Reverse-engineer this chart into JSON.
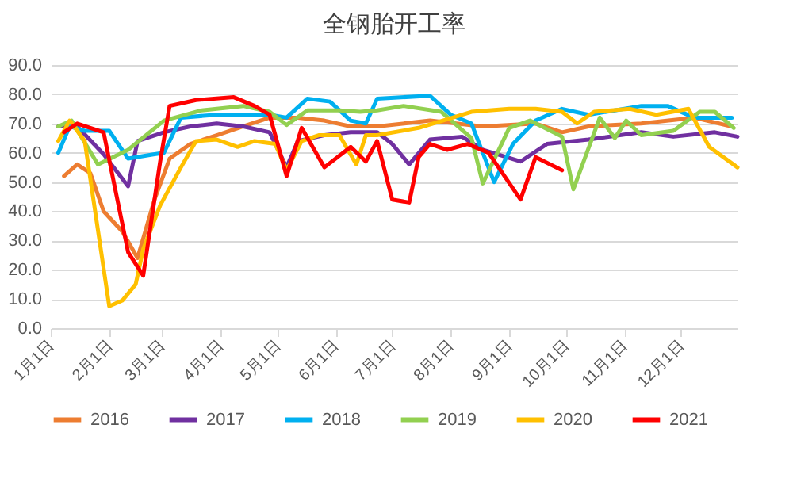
{
  "chart_data": {
    "type": "line",
    "title": "全钢胎开工率",
    "xlim": [
      "--01-01",
      "--12-31"
    ],
    "xticks": [
      {
        "value": "--01-01",
        "label": "1月1日"
      },
      {
        "value": "--02-01",
        "label": "2月1日"
      },
      {
        "value": "--03-01",
        "label": "3月1日"
      },
      {
        "value": "--04-01",
        "label": "4月1日"
      },
      {
        "value": "--05-01",
        "label": "5月1日"
      },
      {
        "value": "--06-01",
        "label": "6月1日"
      },
      {
        "value": "--07-01",
        "label": "7月1日"
      },
      {
        "value": "--08-01",
        "label": "8月1日"
      },
      {
        "value": "--09-01",
        "label": "9月1日"
      },
      {
        "value": "--10-01",
        "label": "10月1日"
      },
      {
        "value": "--11-01",
        "label": "11月1日"
      },
      {
        "value": "--12-01",
        "label": "12月1日"
      }
    ],
    "ylim": [
      0,
      90
    ],
    "yticks": [
      {
        "value": 0,
        "label": "0.0"
      },
      {
        "value": 10,
        "label": "10.0"
      },
      {
        "value": 20,
        "label": "20.0"
      },
      {
        "value": 30,
        "label": "30.0"
      },
      {
        "value": 40,
        "label": "40.0"
      },
      {
        "value": 50,
        "label": "50.0"
      },
      {
        "value": 60,
        "label": "60.0"
      },
      {
        "value": 70,
        "label": "70.0"
      },
      {
        "value": 80,
        "label": "80.0"
      },
      {
        "value": 90,
        "label": "90.0"
      }
    ],
    "grid": "y",
    "legend": "bottom",
    "marker": "none",
    "line_style": "solid",
    "series": [
      {
        "name": "2016",
        "color": "#ed7d31",
        "x": [
          "--01-08",
          "--01-15",
          "--01-22",
          "--01-29",
          "--02-08",
          "--02-16",
          "--02-25",
          "--03-05",
          "--03-16",
          "--03-30",
          "--04-13",
          "--04-27",
          "--05-12",
          "--05-26",
          "--06-09",
          "--06-23",
          "--07-21",
          "--08-18",
          "--09-15",
          "--09-29",
          "--10-13",
          "--11-10",
          "--12-08",
          "--12-28"
        ],
        "values": [
          52,
          56,
          53,
          40,
          33,
          24,
          44,
          58,
          63,
          66,
          69,
          72,
          72,
          71,
          69,
          69,
          71,
          69,
          70,
          67,
          69,
          70,
          72,
          69
        ]
      },
      {
        "name": "2017",
        "color": "#7030a0",
        "x": [
          "--01-05",
          "--01-15",
          "--01-29",
          "--02-11",
          "--02-16",
          "--03-02",
          "--03-16",
          "--03-30",
          "--04-13",
          "--04-27",
          "--05-06",
          "--05-12",
          "--05-26",
          "--06-09",
          "--06-23",
          "--07-01",
          "--07-10",
          "--07-21",
          "--08-07",
          "--08-18",
          "--09-07",
          "--09-21",
          "--10-13",
          "--11-10",
          "--11-27",
          "--12-19",
          "--12-31"
        ],
        "values": [
          69,
          69,
          59.5,
          48.5,
          64,
          67,
          69,
          70,
          69,
          67,
          55,
          64,
          66,
          67,
          67,
          63,
          56,
          64.5,
          65.5,
          61,
          57,
          63,
          64.5,
          67,
          65.5,
          67,
          65.5
        ]
      },
      {
        "name": "2018",
        "color": "#00b0f0",
        "x": [
          "--01-05",
          "--01-11",
          "--01-19",
          "--02-01",
          "--02-11",
          "--02-25",
          "--03-02",
          "--03-11",
          "--03-30",
          "--04-27",
          "--05-06",
          "--05-17",
          "--05-29",
          "--06-09",
          "--06-17",
          "--06-23",
          "--07-21",
          "--08-01",
          "--08-12",
          "--08-24",
          "--09-03",
          "--09-15",
          "--09-29",
          "--10-13",
          "--10-27",
          "--11-10",
          "--11-24",
          "--12-08",
          "--12-28"
        ],
        "values": [
          60,
          69,
          67.5,
          67.5,
          58,
          59.5,
          60,
          72,
          73,
          73,
          72,
          78.5,
          77.5,
          71,
          70,
          78.5,
          79.5,
          73,
          70,
          50,
          63,
          71,
          75,
          73,
          74.5,
          76,
          76,
          72,
          72
        ]
      },
      {
        "name": "2019",
        "color": "#92d050",
        "x": [
          "--01-05",
          "--01-12",
          "--01-26",
          "--02-11",
          "--03-02",
          "--03-22",
          "--04-13",
          "--04-27",
          "--05-06",
          "--05-17",
          "--06-03",
          "--06-14",
          "--06-23",
          "--07-07",
          "--07-27",
          "--08-12",
          "--08-18",
          "--09-01",
          "--09-12",
          "--09-29",
          "--10-05",
          "--10-19",
          "--10-27",
          "--11-02",
          "--11-10",
          "--11-27",
          "--12-11",
          "--12-19",
          "--12-29"
        ],
        "values": [
          69,
          71,
          56,
          61,
          71,
          74.5,
          76,
          74,
          69.5,
          74.5,
          74.5,
          74,
          74.5,
          76,
          74,
          65,
          49.5,
          68.5,
          71,
          65.5,
          47.5,
          72,
          65,
          71,
          66,
          67.5,
          74,
          74,
          68.5
        ]
      },
      {
        "name": "2020",
        "color": "#ffc000",
        "x": [
          "--01-05",
          "--01-11",
          "--01-19",
          "--02-01",
          "--02-08",
          "--02-15",
          "--02-19",
          "--02-28",
          "--03-11",
          "--03-19",
          "--03-30",
          "--04-10",
          "--04-19",
          "--04-30",
          "--05-06",
          "--05-14",
          "--05-23",
          "--06-03",
          "--06-12",
          "--06-17",
          "--06-23",
          "--07-15",
          "--08-12",
          "--09-01",
          "--09-15",
          "--09-29",
          "--10-07",
          "--10-16",
          "--11-04",
          "--11-18",
          "--12-05",
          "--12-16",
          "--12-31"
        ],
        "values": [
          64,
          71,
          64,
          7.5,
          9.5,
          15,
          27,
          42,
          55,
          64,
          64.5,
          62,
          64,
          63,
          54,
          64,
          66,
          66,
          56,
          66,
          66,
          68.5,
          74,
          75,
          75,
          74,
          70,
          74,
          75,
          73,
          75,
          62,
          55
        ]
      },
      {
        "name": "2021",
        "color": "#ff0000",
        "x": [
          "--01-08",
          "--01-15",
          "--01-29",
          "--02-11",
          "--02-19",
          "--02-28",
          "--03-05",
          "--03-19",
          "--04-08",
          "--04-19",
          "--04-27",
          "--05-06",
          "--05-14",
          "--05-26",
          "--06-09",
          "--06-17",
          "--06-23",
          "--07-01",
          "--07-10",
          "--07-15",
          "--07-21",
          "--07-30",
          "--08-10",
          "--08-21",
          "--09-07",
          "--09-15",
          "--09-29"
        ],
        "values": [
          67,
          70,
          67,
          26,
          18,
          57,
          76,
          78,
          79,
          76,
          73,
          52,
          68.5,
          55,
          62,
          57,
          64,
          44,
          43,
          58.5,
          63,
          61,
          63,
          60,
          44,
          58.5,
          54
        ]
      }
    ]
  }
}
